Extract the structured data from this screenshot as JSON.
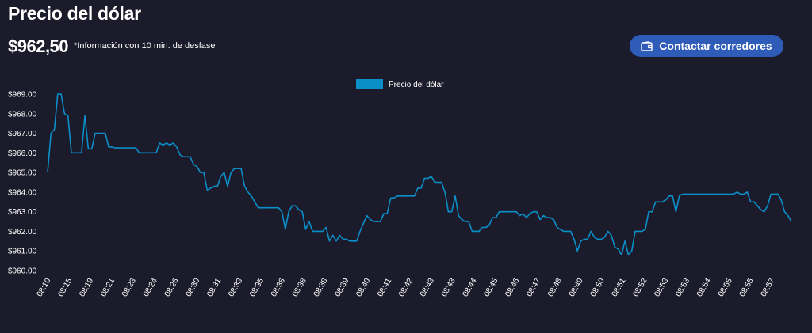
{
  "header": {
    "title": "Precio del dólar",
    "price": "$962,50",
    "note": "*Información con 10 min. de desfase",
    "contact_button": {
      "label": "Contactar corredores",
      "icon": "wallet-icon"
    }
  },
  "colors": {
    "background": "#1b1b2b",
    "line": "#0a8fc8",
    "button": "#2e5cb8"
  },
  "chart_data": {
    "type": "line",
    "title": "",
    "xlabel": "",
    "ylabel": "",
    "legend": {
      "placement": "top-center",
      "entries": [
        "Precio del dólar"
      ]
    },
    "grid": false,
    "ylim": [
      960,
      969
    ],
    "y_ticks": [
      "$960.00",
      "$961.00",
      "$962.00",
      "$963.00",
      "$964.00",
      "$965.00",
      "$966.00",
      "$967.00",
      "$968.00",
      "$969.00"
    ],
    "x_ticks": [
      "08:10",
      "08:15",
      "08:19",
      "08:21",
      "08:23",
      "08:24",
      "08:26",
      "08:30",
      "08:31",
      "08:33",
      "08:35",
      "08:36",
      "08:38",
      "08:38",
      "08:39",
      "08:40",
      "08:41",
      "08:42",
      "08:43",
      "08:43",
      "08:44",
      "08:45",
      "08:46",
      "08:47",
      "08:48",
      "08:49",
      "08:50",
      "08:51",
      "08:52",
      "08:53",
      "08:53",
      "08:54",
      "08:55",
      "08:55",
      "08:57"
    ],
    "series": [
      {
        "name": "Precio del dólar",
        "values": [
          965.0,
          967.0,
          967.2,
          969.0,
          969.0,
          968.0,
          967.9,
          966.0,
          966.0,
          966.0,
          966.0,
          967.9,
          966.2,
          966.2,
          967.0,
          967.0,
          967.0,
          967.0,
          966.3,
          966.3,
          966.25,
          966.25,
          966.25,
          966.25,
          966.25,
          966.25,
          966.25,
          966.0,
          966.0,
          966.0,
          966.0,
          966.0,
          966.0,
          966.5,
          966.4,
          966.5,
          966.4,
          966.5,
          966.3,
          965.9,
          965.8,
          965.8,
          965.8,
          965.4,
          965.3,
          965.0,
          965.0,
          964.1,
          964.2,
          964.3,
          964.3,
          964.8,
          965.0,
          964.3,
          965.0,
          965.2,
          965.2,
          965.2,
          964.3,
          964.0,
          963.8,
          963.5,
          963.2,
          963.2,
          963.2,
          963.2,
          963.2,
          963.2,
          963.2,
          963.0,
          962.1,
          963.0,
          963.3,
          963.3,
          963.1,
          963.0,
          962.1,
          962.5,
          962.0,
          962.0,
          962.0,
          962.0,
          962.2,
          961.5,
          961.8,
          961.5,
          961.8,
          961.6,
          961.6,
          961.5,
          961.5,
          961.5,
          962.0,
          962.4,
          962.8,
          962.6,
          962.5,
          962.5,
          962.5,
          962.9,
          962.9,
          963.7,
          963.7,
          963.8,
          963.8,
          963.8,
          963.8,
          963.8,
          963.8,
          964.2,
          964.2,
          964.7,
          964.7,
          964.8,
          964.5,
          964.5,
          964.5,
          964.0,
          963.0,
          963.0,
          963.8,
          962.8,
          962.6,
          962.5,
          962.5,
          962.0,
          962.0,
          962.0,
          962.2,
          962.2,
          962.3,
          962.7,
          962.7,
          963.0,
          963.0,
          963.0,
          963.0,
          963.0,
          963.0,
          962.8,
          962.9,
          962.7,
          962.9,
          963.0,
          963.0,
          962.6,
          962.8,
          962.7,
          962.7,
          962.6,
          962.2,
          962.1,
          962.0,
          962.0,
          962.0,
          961.6,
          961.0,
          961.5,
          961.6,
          961.6,
          962.0,
          961.7,
          961.6,
          961.6,
          961.7,
          962.0,
          961.8,
          961.2,
          961.1,
          960.8,
          961.5,
          960.8,
          961.0,
          962.0,
          962.0,
          962.0,
          962.1,
          963.0,
          963.0,
          963.5,
          963.5,
          963.5,
          963.6,
          963.8,
          963.8,
          963.0,
          963.8,
          963.9,
          963.9,
          963.9,
          963.9,
          963.9,
          963.9,
          963.9,
          963.9,
          963.9,
          963.9,
          963.9,
          963.9,
          963.9,
          963.9,
          963.9,
          963.9,
          964.0,
          963.9,
          963.9,
          964.0,
          963.5,
          963.5,
          963.3,
          963.1,
          963.0,
          963.3,
          963.9,
          963.9,
          963.9,
          963.6,
          963.0,
          962.8,
          962.5
        ]
      }
    ]
  }
}
